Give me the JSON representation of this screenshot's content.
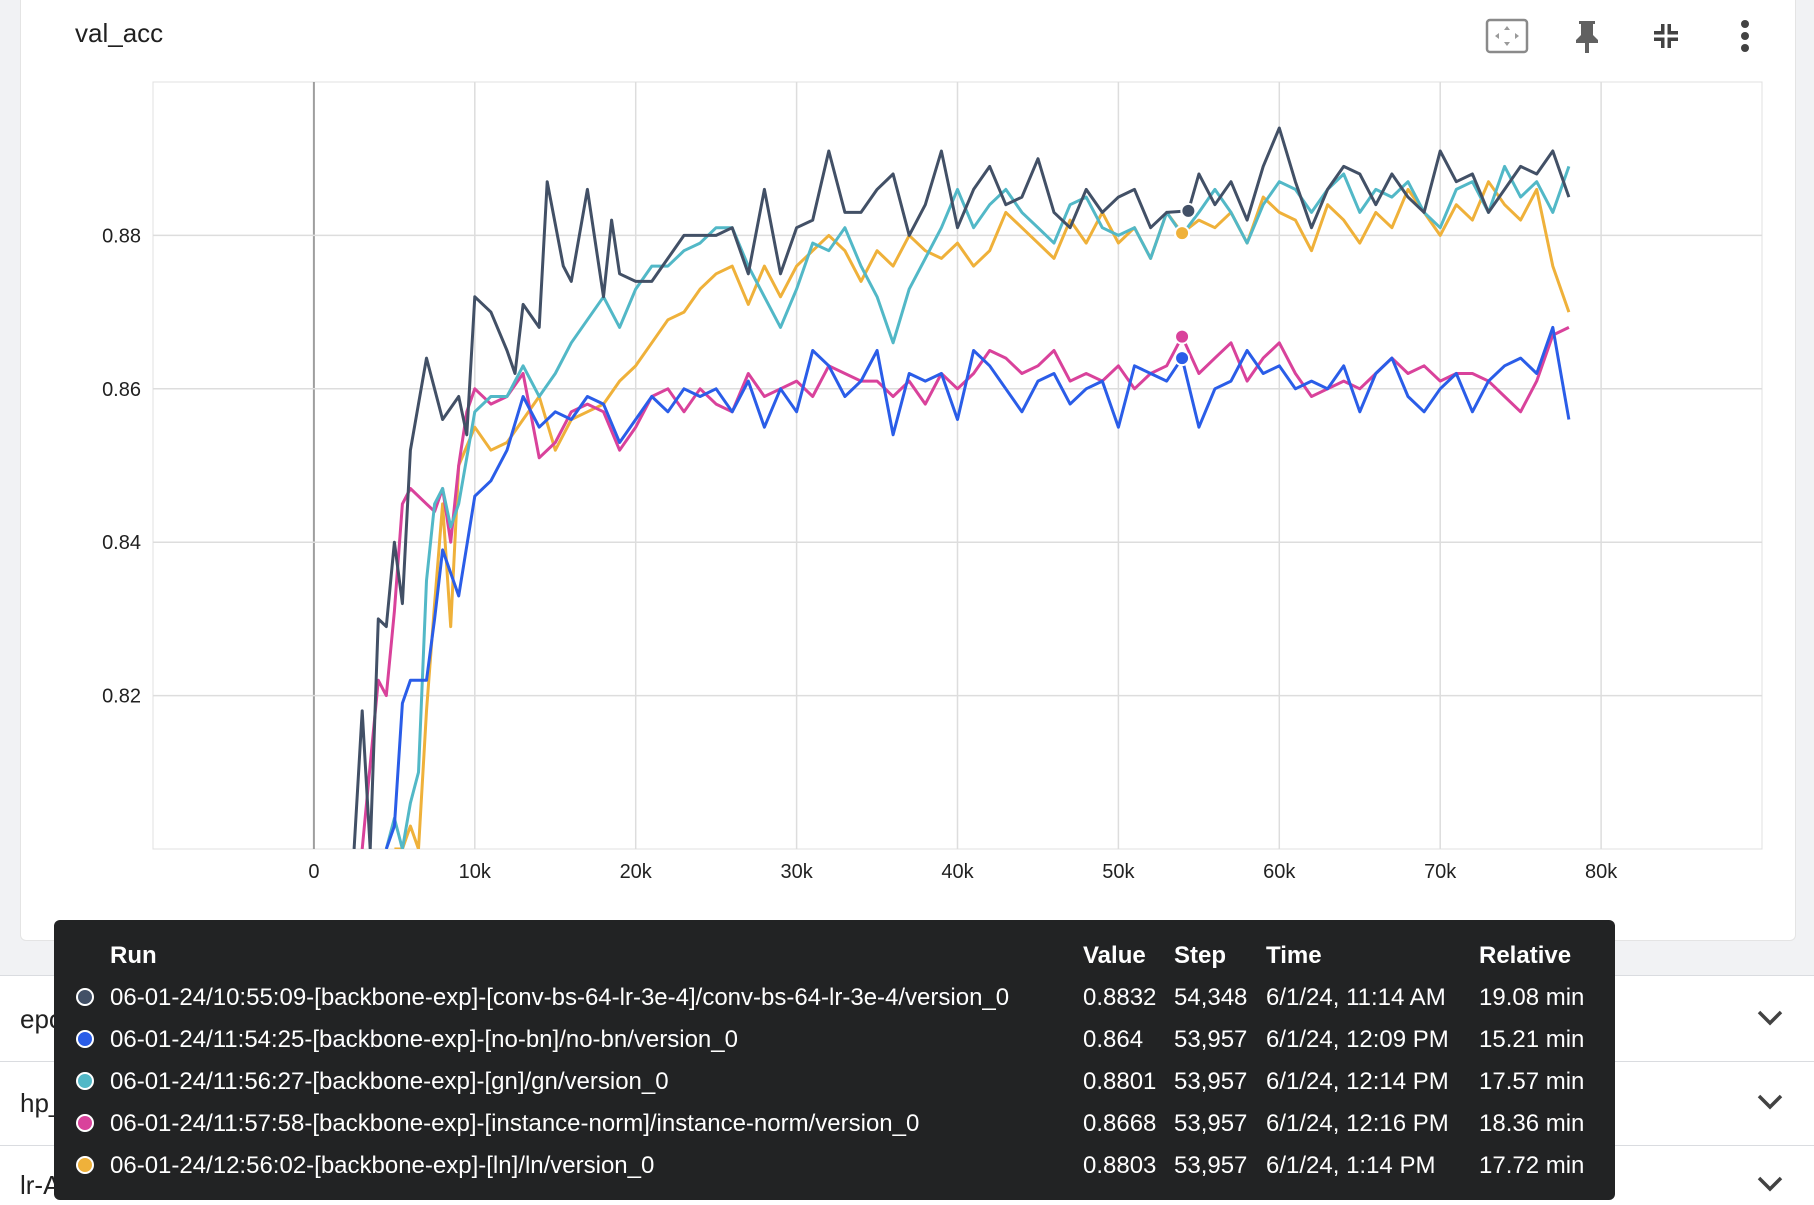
{
  "card": {
    "title": "val_acc",
    "tools": [
      {
        "name": "fit-domain-icon"
      },
      {
        "name": "pin-icon"
      },
      {
        "name": "collapse-icon"
      },
      {
        "name": "more-vert-icon"
      }
    ]
  },
  "chart_data": {
    "type": "line",
    "xlabel": "",
    "ylabel": "",
    "xlim": [
      -10000,
      90000
    ],
    "ylim": [
      0.8,
      0.9
    ],
    "x_ticks": [
      0,
      10000,
      20000,
      30000,
      40000,
      50000,
      60000,
      70000,
      80000
    ],
    "x_tick_labels": [
      "0",
      "10k",
      "20k",
      "30k",
      "40k",
      "50k",
      "60k",
      "70k",
      "80k"
    ],
    "y_ticks": [
      0.82,
      0.84,
      0.86,
      0.88
    ],
    "y_tick_labels": [
      "0.82",
      "0.84",
      "0.86",
      "0.88"
    ],
    "grid": true,
    "hover_step": 54000,
    "series": [
      {
        "name": "06-01-24/10:55:09-[backbone-exp]-[conv-bs-64-lr-3e-4]/conv-bs-64-lr-3e-4/version_0",
        "color": "#425066",
        "x": [
          2500,
          3000,
          3500,
          4000,
          4500,
          5000,
          5500,
          6000,
          7000,
          8000,
          9000,
          9500,
          10000,
          11000,
          12000,
          12500,
          13000,
          14000,
          14500,
          15500,
          16000,
          17000,
          18000,
          18500,
          19000,
          20000,
          21000,
          22000,
          23000,
          24000,
          25000,
          26000,
          27000,
          28000,
          29000,
          30000,
          31000,
          32000,
          33000,
          34000,
          35000,
          36000,
          37000,
          38000,
          39000,
          40000,
          41000,
          42000,
          43000,
          44000,
          45000,
          46000,
          47000,
          48000,
          49000,
          50000,
          51000,
          52000,
          53000,
          54348,
          55000,
          56000,
          57000,
          58000,
          59000,
          60000,
          61000,
          62000,
          63000,
          64000,
          65000,
          66000,
          67000,
          68000,
          69000,
          70000,
          71000,
          72000,
          73000,
          74000,
          75000,
          76000,
          77000,
          78000
        ],
        "y": [
          0.8,
          0.818,
          0.8,
          0.83,
          0.829,
          0.84,
          0.832,
          0.852,
          0.864,
          0.856,
          0.859,
          0.854,
          0.872,
          0.87,
          0.865,
          0.862,
          0.871,
          0.868,
          0.887,
          0.876,
          0.874,
          0.886,
          0.872,
          0.882,
          0.875,
          0.874,
          0.874,
          0.877,
          0.88,
          0.88,
          0.88,
          0.881,
          0.875,
          0.886,
          0.875,
          0.881,
          0.882,
          0.891,
          0.883,
          0.883,
          0.886,
          0.888,
          0.88,
          0.884,
          0.891,
          0.881,
          0.886,
          0.889,
          0.884,
          0.885,
          0.89,
          0.883,
          0.881,
          0.886,
          0.883,
          0.885,
          0.886,
          0.881,
          0.883,
          0.8832,
          0.888,
          0.884,
          0.887,
          0.882,
          0.889,
          0.894,
          0.887,
          0.881,
          0.886,
          0.889,
          0.888,
          0.884,
          0.888,
          0.885,
          0.883,
          0.891,
          0.887,
          0.888,
          0.883,
          0.886,
          0.889,
          0.888,
          0.891,
          0.885
        ]
      },
      {
        "name": "06-01-24/11:54:25-[backbone-exp]-[no-bn]/no-bn/version_0",
        "color": "#2a5de8",
        "x": [
          4500,
          5000,
          5500,
          6000,
          7000,
          7500,
          8000,
          9000,
          10000,
          11000,
          12000,
          13000,
          14000,
          15000,
          16000,
          17000,
          18000,
          19000,
          20000,
          21000,
          22000,
          23000,
          24000,
          25000,
          26000,
          27000,
          28000,
          29000,
          30000,
          31000,
          32000,
          33000,
          34000,
          35000,
          36000,
          37000,
          38000,
          39000,
          40000,
          41000,
          42000,
          43000,
          44000,
          45000,
          46000,
          47000,
          48000,
          49000,
          50000,
          51000,
          52000,
          53000,
          53957,
          55000,
          56000,
          57000,
          58000,
          59000,
          60000,
          61000,
          62000,
          63000,
          64000,
          65000,
          66000,
          67000,
          68000,
          69000,
          70000,
          71000,
          72000,
          73000,
          74000,
          75000,
          76000,
          77000,
          78000
        ],
        "y": [
          0.8,
          0.803,
          0.819,
          0.822,
          0.822,
          0.83,
          0.839,
          0.833,
          0.846,
          0.848,
          0.852,
          0.859,
          0.855,
          0.857,
          0.856,
          0.859,
          0.858,
          0.853,
          0.856,
          0.859,
          0.857,
          0.86,
          0.859,
          0.86,
          0.857,
          0.861,
          0.855,
          0.86,
          0.857,
          0.865,
          0.863,
          0.859,
          0.861,
          0.865,
          0.854,
          0.862,
          0.861,
          0.862,
          0.856,
          0.865,
          0.863,
          0.86,
          0.857,
          0.861,
          0.862,
          0.858,
          0.86,
          0.861,
          0.855,
          0.863,
          0.862,
          0.861,
          0.864,
          0.855,
          0.86,
          0.861,
          0.865,
          0.862,
          0.863,
          0.86,
          0.861,
          0.86,
          0.863,
          0.857,
          0.862,
          0.864,
          0.859,
          0.857,
          0.86,
          0.862,
          0.857,
          0.861,
          0.863,
          0.864,
          0.862,
          0.868,
          0.856
        ]
      },
      {
        "name": "06-01-24/11:56:27-[backbone-exp]-[gn]/gn/version_0",
        "color": "#52b8c7",
        "x": [
          4500,
          5000,
          5500,
          6000,
          6500,
          7000,
          7500,
          8000,
          8500,
          9000,
          10000,
          11000,
          12000,
          13000,
          14000,
          15000,
          16000,
          17000,
          18000,
          19000,
          20000,
          21000,
          22000,
          23000,
          24000,
          25000,
          26000,
          27000,
          28000,
          29000,
          30000,
          31000,
          32000,
          33000,
          34000,
          35000,
          36000,
          37000,
          38000,
          39000,
          40000,
          41000,
          42000,
          43000,
          44000,
          45000,
          46000,
          47000,
          48000,
          49000,
          50000,
          51000,
          52000,
          53000,
          53957,
          55000,
          56000,
          57000,
          58000,
          59000,
          60000,
          61000,
          62000,
          63000,
          64000,
          65000,
          66000,
          67000,
          68000,
          69000,
          70000,
          71000,
          72000,
          73000,
          74000,
          75000,
          76000,
          77000,
          78000
        ],
        "y": [
          0.8,
          0.804,
          0.8,
          0.806,
          0.81,
          0.835,
          0.845,
          0.847,
          0.842,
          0.845,
          0.857,
          0.859,
          0.859,
          0.863,
          0.859,
          0.862,
          0.866,
          0.869,
          0.872,
          0.868,
          0.873,
          0.876,
          0.876,
          0.878,
          0.879,
          0.881,
          0.881,
          0.876,
          0.872,
          0.868,
          0.873,
          0.879,
          0.878,
          0.881,
          0.876,
          0.872,
          0.866,
          0.873,
          0.877,
          0.881,
          0.886,
          0.881,
          0.884,
          0.886,
          0.883,
          0.881,
          0.879,
          0.884,
          0.885,
          0.881,
          0.88,
          0.881,
          0.877,
          0.883,
          0.8801,
          0.883,
          0.886,
          0.883,
          0.879,
          0.884,
          0.887,
          0.886,
          0.883,
          0.886,
          0.888,
          0.883,
          0.886,
          0.885,
          0.887,
          0.883,
          0.881,
          0.886,
          0.887,
          0.883,
          0.889,
          0.885,
          0.887,
          0.883,
          0.889
        ]
      },
      {
        "name": "06-01-24/11:57:58-[backbone-exp]-[instance-norm]/instance-norm/version_0",
        "color": "#d9429b",
        "x": [
          3000,
          3500,
          4000,
          4500,
          5000,
          5500,
          6000,
          7000,
          7500,
          8000,
          8500,
          9000,
          9500,
          10000,
          11000,
          12000,
          13000,
          14000,
          15000,
          16000,
          17000,
          18000,
          19000,
          20000,
          21000,
          22000,
          23000,
          24000,
          25000,
          26000,
          27000,
          28000,
          29000,
          30000,
          31000,
          32000,
          33000,
          34000,
          35000,
          36000,
          37000,
          38000,
          39000,
          40000,
          41000,
          42000,
          43000,
          44000,
          45000,
          46000,
          47000,
          48000,
          49000,
          50000,
          51000,
          52000,
          53000,
          53957,
          55000,
          56000,
          57000,
          58000,
          59000,
          60000,
          61000,
          62000,
          63000,
          64000,
          65000,
          66000,
          67000,
          68000,
          69000,
          70000,
          71000,
          72000,
          73000,
          74000,
          75000,
          76000,
          77000,
          78000
        ],
        "y": [
          0.8,
          0.811,
          0.822,
          0.82,
          0.831,
          0.845,
          0.847,
          0.845,
          0.844,
          0.847,
          0.84,
          0.85,
          0.857,
          0.86,
          0.858,
          0.859,
          0.862,
          0.851,
          0.853,
          0.857,
          0.858,
          0.857,
          0.852,
          0.855,
          0.859,
          0.86,
          0.857,
          0.86,
          0.858,
          0.857,
          0.862,
          0.859,
          0.86,
          0.861,
          0.859,
          0.863,
          0.862,
          0.861,
          0.861,
          0.859,
          0.861,
          0.858,
          0.862,
          0.86,
          0.862,
          0.865,
          0.864,
          0.862,
          0.863,
          0.865,
          0.861,
          0.862,
          0.861,
          0.863,
          0.86,
          0.862,
          0.863,
          0.8668,
          0.862,
          0.864,
          0.866,
          0.861,
          0.864,
          0.866,
          0.862,
          0.859,
          0.86,
          0.861,
          0.86,
          0.862,
          0.864,
          0.862,
          0.863,
          0.861,
          0.862,
          0.862,
          0.861,
          0.859,
          0.857,
          0.861,
          0.867,
          0.868
        ]
      },
      {
        "name": "06-01-24/12:56:02-[backbone-exp]-[ln]/ln/version_0",
        "color": "#efb13a",
        "x": [
          5000,
          5500,
          6000,
          6500,
          7000,
          7500,
          8000,
          8500,
          9000,
          10000,
          11000,
          12000,
          13000,
          14000,
          15000,
          16000,
          17000,
          18000,
          19000,
          20000,
          21000,
          22000,
          23000,
          24000,
          25000,
          26000,
          27000,
          28000,
          29000,
          30000,
          31000,
          32000,
          33000,
          34000,
          35000,
          36000,
          37000,
          38000,
          39000,
          40000,
          41000,
          42000,
          43000,
          44000,
          45000,
          46000,
          47000,
          48000,
          49000,
          50000,
          51000,
          52000,
          53000,
          53957,
          55000,
          56000,
          57000,
          58000,
          59000,
          60000,
          61000,
          62000,
          63000,
          64000,
          65000,
          66000,
          67000,
          68000,
          69000,
          70000,
          71000,
          72000,
          73000,
          74000,
          75000,
          76000,
          77000,
          78000
        ],
        "y": [
          0.8,
          0.8,
          0.803,
          0.8,
          0.818,
          0.832,
          0.845,
          0.829,
          0.85,
          0.855,
          0.852,
          0.853,
          0.856,
          0.859,
          0.852,
          0.856,
          0.857,
          0.858,
          0.861,
          0.863,
          0.866,
          0.869,
          0.87,
          0.873,
          0.875,
          0.876,
          0.871,
          0.876,
          0.872,
          0.876,
          0.878,
          0.88,
          0.878,
          0.874,
          0.878,
          0.876,
          0.88,
          0.878,
          0.877,
          0.879,
          0.876,
          0.878,
          0.883,
          0.881,
          0.879,
          0.877,
          0.882,
          0.879,
          0.883,
          0.879,
          0.881,
          0.877,
          0.883,
          0.8803,
          0.882,
          0.881,
          0.883,
          0.879,
          0.885,
          0.883,
          0.882,
          0.878,
          0.884,
          0.882,
          0.879,
          0.883,
          0.881,
          0.886,
          0.883,
          0.88,
          0.884,
          0.882,
          0.887,
          0.884,
          0.882,
          0.886,
          0.876,
          0.87
        ]
      }
    ]
  },
  "tooltip": {
    "headers": {
      "run": "Run",
      "value": "Value",
      "step": "Step",
      "time": "Time",
      "relative": "Relative"
    },
    "rows": [
      {
        "color": "#425066",
        "run": "06-01-24/10:55:09-[backbone-exp]-[conv-bs-64-lr-3e-4]/conv-bs-64-lr-3e-4/version_0",
        "value": "0.8832",
        "step": "54,348",
        "time": "6/1/24, 11:14 AM",
        "relative": "19.08 min"
      },
      {
        "color": "#2a5de8",
        "run": "06-01-24/11:54:25-[backbone-exp]-[no-bn]/no-bn/version_0",
        "value": "0.864",
        "step": "53,957",
        "time": "6/1/24, 12:09 PM",
        "relative": "15.21 min"
      },
      {
        "color": "#52b8c7",
        "run": "06-01-24/11:56:27-[backbone-exp]-[gn]/gn/version_0",
        "value": "0.8801",
        "step": "53,957",
        "time": "6/1/24, 12:14 PM",
        "relative": "17.57 min"
      },
      {
        "color": "#d9429b",
        "run": "06-01-24/11:57:58-[backbone-exp]-[instance-norm]/instance-norm/version_0",
        "value": "0.8668",
        "step": "53,957",
        "time": "6/1/24, 12:16 PM",
        "relative": "18.36 min"
      },
      {
        "color": "#efb13a",
        "run": "06-01-24/12:56:02-[backbone-exp]-[ln]/ln/version_0",
        "value": "0.8803",
        "step": "53,957",
        "time": "6/1/24, 1:14 PM",
        "relative": "17.72 min"
      }
    ]
  },
  "sections": [
    {
      "label": "epoch"
    },
    {
      "label": "hp_metric"
    },
    {
      "label": "lr-AdamW"
    }
  ]
}
